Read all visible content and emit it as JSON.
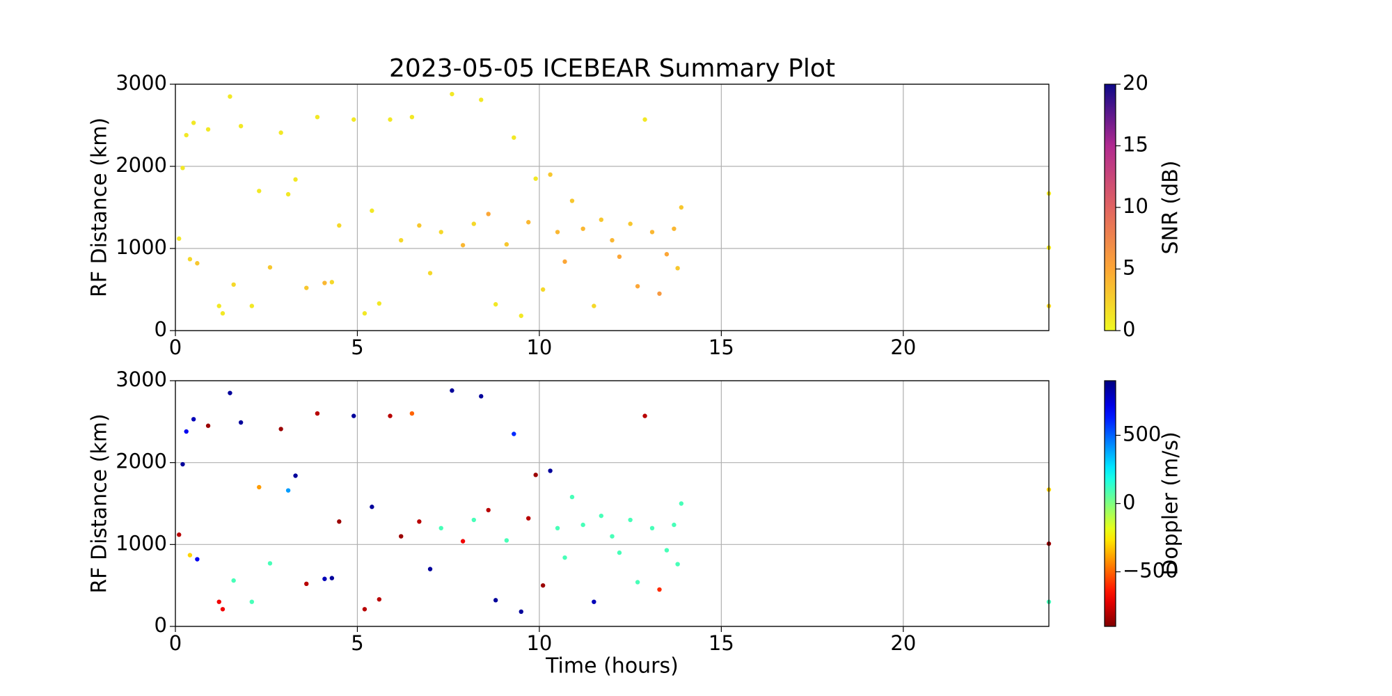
{
  "chart_data": [
    {
      "type": "scatter",
      "title": "2023-05-05 ICEBEAR Summary Plot",
      "ylabel": "RF Distance (km)",
      "x": [
        0.1,
        0.2,
        0.3,
        0.4,
        0.5,
        0.6,
        0.9,
        1.2,
        1.3,
        1.5,
        1.6,
        1.8,
        2.1,
        2.3,
        2.6,
        2.9,
        3.1,
        3.3,
        3.6,
        3.9,
        4.1,
        4.3,
        4.5,
        4.9,
        5.2,
        5.4,
        5.6,
        5.9,
        6.2,
        6.5,
        6.7,
        7.0,
        7.3,
        7.6,
        7.9,
        8.2,
        8.4,
        8.6,
        8.8,
        9.1,
        9.3,
        9.5,
        9.7,
        9.9,
        10.1,
        10.3,
        10.5,
        10.7,
        10.9,
        11.2,
        11.5,
        11.7,
        12.0,
        12.2,
        12.5,
        12.7,
        12.9,
        13.1,
        13.3,
        13.5,
        13.7,
        13.8,
        13.9,
        24.0,
        24.0,
        24.0
      ],
      "y": [
        1120,
        1980,
        2380,
        870,
        2530,
        820,
        2450,
        300,
        210,
        2850,
        560,
        2490,
        300,
        1700,
        770,
        2410,
        1660,
        1840,
        520,
        2600,
        580,
        590,
        1280,
        2570,
        210,
        1460,
        330,
        2570,
        1100,
        2600,
        1280,
        700,
        1200,
        2880,
        1040,
        1300,
        2810,
        1420,
        320,
        1050,
        2350,
        180,
        1320,
        1850,
        500,
        1900,
        1200,
        840,
        1580,
        1240,
        300,
        1350,
        1100,
        900,
        1300,
        540,
        2570,
        1200,
        450,
        930,
        1240,
        760,
        1500,
        1670,
        300,
        1010
      ],
      "color_values": [
        1,
        1,
        1,
        2,
        1,
        3,
        1,
        1,
        1,
        1,
        2,
        1,
        1,
        1,
        3,
        1,
        1,
        1,
        3,
        1,
        4,
        2,
        2,
        1,
        1,
        1,
        1,
        1,
        2,
        1,
        3,
        2,
        2,
        1,
        4,
        2,
        1,
        5,
        1,
        3,
        1,
        1,
        4,
        1,
        2,
        3,
        4,
        5,
        3,
        4,
        2,
        3,
        4,
        5,
        3,
        5,
        1,
        4,
        6,
        5,
        4,
        3,
        3,
        1,
        2,
        1
      ],
      "xlim": [
        0,
        24
      ],
      "ylim": [
        0,
        3000
      ],
      "xticks": [
        0,
        5,
        10,
        15,
        20
      ],
      "yticks": [
        0,
        1000,
        2000,
        3000
      ],
      "grid": true,
      "colorbar": {
        "label": "SNR (dB)",
        "lim": [
          0,
          20
        ],
        "ticks": [
          0,
          5,
          10,
          15,
          20
        ],
        "colormap": "plasma_r"
      }
    },
    {
      "type": "scatter",
      "xlabel": "Time (hours)",
      "ylabel": "RF Distance (km)",
      "x": [
        0.1,
        0.2,
        0.3,
        0.4,
        0.5,
        0.6,
        0.9,
        1.2,
        1.3,
        1.5,
        1.6,
        1.8,
        2.1,
        2.3,
        2.6,
        2.9,
        3.1,
        3.3,
        3.6,
        3.9,
        4.1,
        4.3,
        4.5,
        4.9,
        5.2,
        5.4,
        5.6,
        5.9,
        6.2,
        6.5,
        6.7,
        7.0,
        7.3,
        7.6,
        7.9,
        8.2,
        8.4,
        8.6,
        8.8,
        9.1,
        9.3,
        9.5,
        9.7,
        9.9,
        10.1,
        10.3,
        10.5,
        10.7,
        10.9,
        11.2,
        11.5,
        11.7,
        12.0,
        12.2,
        12.5,
        12.7,
        12.9,
        13.1,
        13.3,
        13.5,
        13.7,
        13.8,
        13.9,
        24.0,
        24.0,
        24.0
      ],
      "y": [
        1120,
        1980,
        2380,
        870,
        2530,
        820,
        2450,
        300,
        210,
        2850,
        560,
        2490,
        300,
        1700,
        770,
        2410,
        1660,
        1840,
        520,
        2600,
        580,
        590,
        1280,
        2570,
        210,
        1460,
        330,
        2570,
        1100,
        2600,
        1280,
        700,
        1200,
        2880,
        1040,
        1300,
        2810,
        1420,
        320,
        1050,
        2350,
        180,
        1320,
        1850,
        500,
        1900,
        1200,
        840,
        1580,
        1240,
        300,
        1350,
        1100,
        900,
        1300,
        540,
        2570,
        1200,
        450,
        930,
        1240,
        760,
        1500,
        1670,
        300,
        1010
      ],
      "color_values": [
        -800,
        850,
        700,
        -300,
        800,
        700,
        -850,
        -700,
        -700,
        850,
        100,
        850,
        100,
        -400,
        100,
        -850,
        400,
        850,
        -800,
        -800,
        800,
        850,
        -850,
        850,
        -800,
        850,
        -800,
        -800,
        -850,
        -500,
        -800,
        850,
        100,
        850,
        -700,
        100,
        850,
        -800,
        850,
        100,
        600,
        850,
        -800,
        -850,
        -850,
        850,
        100,
        100,
        100,
        100,
        800,
        100,
        100,
        100,
        100,
        100,
        -800,
        100,
        -600,
        100,
        100,
        100,
        100,
        -300,
        100,
        -850
      ],
      "xlim": [
        0,
        24
      ],
      "ylim": [
        0,
        3000
      ],
      "xticks": [
        0,
        5,
        10,
        15,
        20
      ],
      "yticks": [
        0,
        1000,
        2000,
        3000
      ],
      "grid": true,
      "colorbar": {
        "label": "Doppler (m/s)",
        "lim": [
          -900,
          900
        ],
        "ticks": [
          {
            "value": -500,
            "label": "−500"
          },
          0,
          500
        ],
        "colormap": "jet_r"
      }
    }
  ]
}
